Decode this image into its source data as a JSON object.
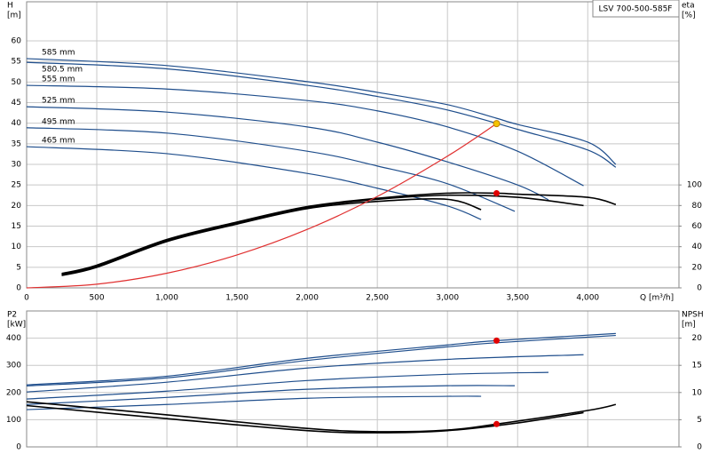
{
  "chart_data": [
    {
      "type": "line",
      "title": "LSV 700-500-585F",
      "ylabel": [
        "H",
        "[m]"
      ],
      "y2label": [
        "eta",
        "[%]"
      ],
      "xlabel": "Q [m³/h]",
      "xlim": [
        0,
        4650
      ],
      "ylim": [
        0,
        69.5
      ],
      "y2lim": [
        0,
        278
      ],
      "xticks": [
        0,
        500,
        {
          "value": 1000,
          "label": "1,000"
        },
        {
          "value": 1500,
          "label": "1,500"
        },
        {
          "value": 2000,
          "label": "2,000"
        },
        {
          "value": 2500,
          "label": "2,500"
        },
        {
          "value": 3000,
          "label": "3,000"
        },
        {
          "value": 3500,
          "label": "3,500"
        },
        {
          "value": 4000,
          "label": "4,000"
        }
      ],
      "yticks": [
        0,
        5,
        10,
        15,
        20,
        25,
        30,
        35,
        40,
        45,
        50,
        55,
        60
      ],
      "y2ticks": [
        0,
        20,
        40,
        60,
        80,
        100
      ],
      "grid": true,
      "show_xtick_labels": true,
      "series": [
        {
          "name": "585 mm",
          "color": "#1f4e8c",
          "x": [
            0,
            1000,
            2000,
            2500,
            3000,
            3350,
            3500,
            4000,
            4200
          ],
          "values": [
            55.7,
            54.0,
            50.1,
            47.5,
            44.5,
            41.2,
            39.7,
            35.4,
            30.0
          ]
        },
        {
          "name": "580.5 mm",
          "color": "#1f4e8c",
          "x": [
            0,
            1000,
            2000,
            2500,
            3000,
            3500,
            4000,
            4200
          ],
          "values": [
            54.8,
            53.2,
            49.2,
            46.5,
            43.2,
            38.5,
            33.5,
            29.3
          ]
        },
        {
          "name": "555 mm",
          "color": "#1f4e8c",
          "x": [
            0,
            1000,
            2000,
            2500,
            3000,
            3500,
            3970
          ],
          "values": [
            49.2,
            48.3,
            45.5,
            43.0,
            39.1,
            33.2,
            24.8
          ]
        },
        {
          "name": "525 mm",
          "color": "#1f4e8c",
          "x": [
            0,
            1000,
            2000,
            2500,
            3000,
            3500,
            3720
          ],
          "values": [
            44.0,
            42.7,
            39.1,
            35.4,
            30.6,
            25.0,
            21.4
          ]
        },
        {
          "name": "495 mm",
          "color": "#1f4e8c",
          "x": [
            0,
            1000,
            2000,
            2500,
            3000,
            3480
          ],
          "values": [
            38.9,
            37.6,
            33.2,
            29.6,
            25.3,
            18.6
          ]
        },
        {
          "name": "465 mm",
          "color": "#1f4e8c",
          "x": [
            0,
            1000,
            2000,
            2500,
            3000,
            3240
          ],
          "values": [
            34.3,
            32.6,
            27.8,
            24.2,
            19.9,
            16.6
          ]
        },
        {
          "color": "#000000",
          "axis": "y2",
          "x": [
            250,
            500,
            1000,
            1500,
            2000,
            2500,
            3000,
            3350,
            3500,
            4000,
            4200
          ],
          "values": [
            14,
            22,
            47,
            64,
            79,
            87,
            92,
            92,
            91,
            88,
            81
          ]
        },
        {
          "color": "#000000",
          "axis": "y2",
          "x": [
            250,
            500,
            1000,
            1500,
            2000,
            2500,
            3000,
            3500,
            3970
          ],
          "values": [
            13,
            21,
            46,
            63,
            78,
            86,
            90,
            88,
            80
          ]
        },
        {
          "color": "#000000",
          "axis": "y2",
          "x": [
            250,
            500,
            1000,
            1500,
            2000,
            2500,
            3000,
            3240
          ],
          "values": [
            12,
            20,
            45,
            62,
            77,
            84,
            86,
            76
          ]
        },
        {
          "color": "#e03030",
          "x": [
            0,
            500,
            1000,
            1500,
            2000,
            2500,
            3000,
            3350
          ],
          "values": [
            0,
            0.89,
            3.56,
            8.0,
            14.2,
            22.2,
            32.0,
            39.9
          ]
        },
        {
          "color": "#f5c400",
          "marker": true,
          "x": [
            3350
          ],
          "values": [
            39.9
          ]
        },
        {
          "color": "#e00000",
          "marker": true,
          "axis": "y2",
          "x": [
            3350
          ],
          "values": [
            92
          ]
        }
      ]
    },
    {
      "type": "line",
      "ylabel": [
        "P2",
        "[kW]"
      ],
      "y2label": [
        "NPSH",
        "[m]"
      ],
      "xlim": [
        0,
        4650
      ],
      "ylim": [
        0,
        500
      ],
      "y2lim": [
        0,
        25
      ],
      "xticks": [
        0,
        500,
        1000,
        1500,
        2000,
        2500,
        3000,
        3500,
        4000
      ],
      "yticks": [
        0,
        100,
        200,
        300,
        400
      ],
      "y2ticks": [
        0,
        5,
        10,
        15,
        20
      ],
      "grid": true,
      "show_xtick_labels": false,
      "series": [
        {
          "color": "#1f4e8c",
          "x": [
            0,
            1000,
            2000,
            3000,
            3350,
            4200
          ],
          "values": [
            228,
            260,
            326,
            375,
            391,
            417
          ]
        },
        {
          "color": "#1f4e8c",
          "x": [
            0,
            1000,
            2000,
            3000,
            3350,
            4200
          ],
          "values": [
            224,
            254,
            318,
            368,
            383,
            410
          ]
        },
        {
          "color": "#1f4e8c",
          "x": [
            0,
            1000,
            2000,
            3000,
            3970
          ],
          "values": [
            202,
            238,
            290,
            322,
            339
          ]
        },
        {
          "color": "#1f4e8c",
          "x": [
            0,
            1000,
            2000,
            3000,
            3720
          ],
          "values": [
            176,
            205,
            244,
            267,
            274
          ]
        },
        {
          "color": "#1f4e8c",
          "x": [
            0,
            1000,
            2000,
            3000,
            3480
          ],
          "values": [
            156,
            182,
            212,
            225,
            225
          ]
        },
        {
          "color": "#1f4e8c",
          "x": [
            0,
            1000,
            2000,
            3000,
            3240
          ],
          "values": [
            137,
            156,
            179,
            186,
            186
          ]
        },
        {
          "color": "#000000",
          "axis": "y2",
          "x": [
            0,
            1000,
            2000,
            2500,
            3000,
            3350,
            4000,
            4200
          ],
          "values": [
            8.3,
            5.9,
            3.4,
            2.8,
            3.1,
            4.2,
            6.7,
            7.8
          ]
        },
        {
          "color": "#000000",
          "axis": "y2",
          "x": [
            0,
            1000,
            2000,
            2500,
            3000,
            3500,
            3970
          ],
          "values": [
            7.6,
            5.2,
            3.0,
            2.6,
            3.0,
            4.4,
            6.3
          ]
        },
        {
          "color": "#e00000",
          "marker": true,
          "x": [
            3350
          ],
          "values": [
            391
          ]
        },
        {
          "color": "#e00000",
          "marker": true,
          "axis": "y2",
          "x": [
            3350
          ],
          "values": [
            4.2
          ]
        }
      ]
    }
  ]
}
